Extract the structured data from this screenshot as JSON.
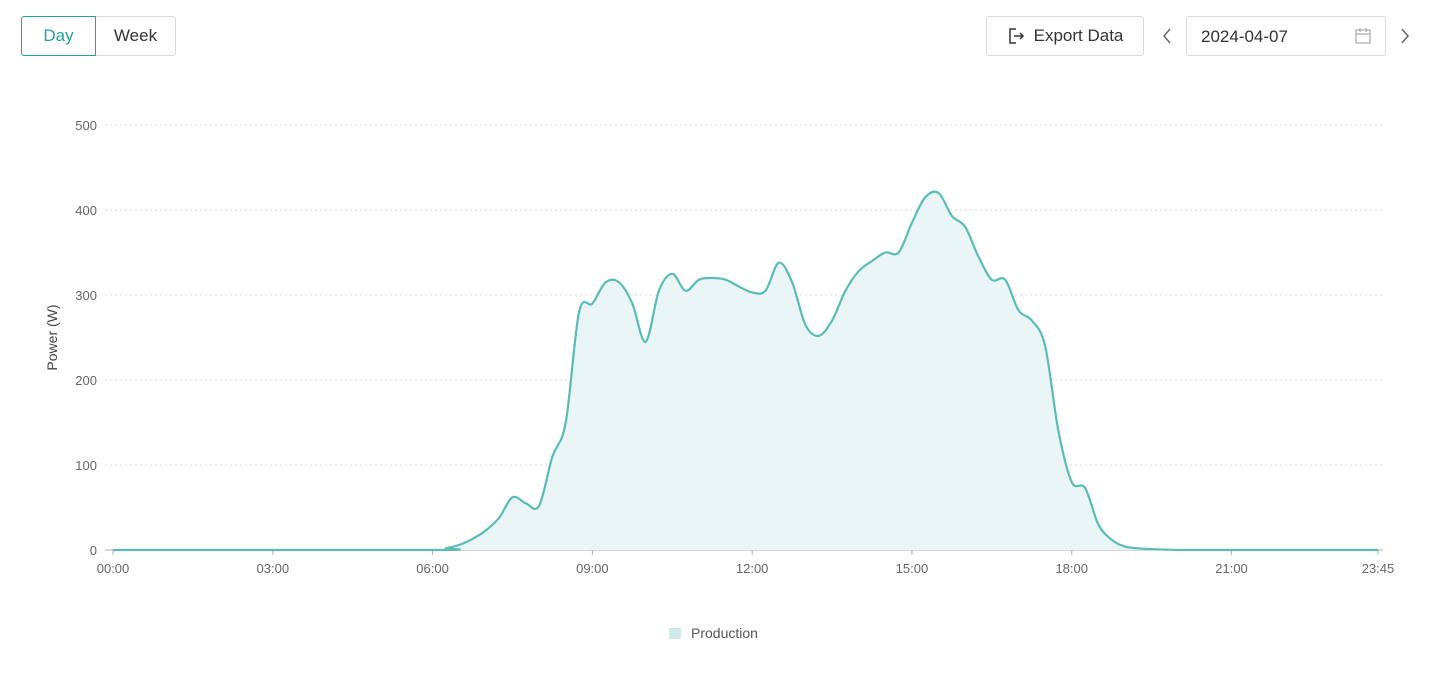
{
  "toolbar": {
    "tabs": [
      {
        "label": "Day",
        "active": true
      },
      {
        "label": "Week",
        "active": false
      }
    ],
    "export_label": "Export Data",
    "date_value": "2024-04-07",
    "icons": {
      "export": "export-icon",
      "prev": "chevron-left-icon",
      "next": "chevron-right-icon",
      "calendar": "calendar-icon"
    }
  },
  "colors": {
    "accent": "#24a39a",
    "line": "#5bbcb6",
    "fill": "#e9f6f5",
    "legend_swatch": "#cfeae8",
    "grid": "#d9d9d9",
    "axis": "#b0b0b0"
  },
  "chart_data": {
    "type": "area",
    "ylabel": "Power (W)",
    "xlabel": "",
    "ylim": [
      0,
      500
    ],
    "yticks": [
      0,
      100,
      200,
      300,
      400,
      500
    ],
    "x_range": [
      "00:00",
      "23:45"
    ],
    "xticks": [
      "00:00",
      "03:00",
      "06:00",
      "09:00",
      "12:00",
      "15:00",
      "18:00",
      "21:00",
      "23:45"
    ],
    "grid": "horizontal dotted",
    "legend_position": "bottom-center",
    "series": [
      {
        "name": "Production",
        "x": [
          "00:00",
          "06:00",
          "06:15",
          "06:30",
          "06:45",
          "07:00",
          "07:15",
          "07:30",
          "07:45",
          "08:00",
          "08:15",
          "08:30",
          "08:45",
          "09:00",
          "09:15",
          "09:30",
          "09:45",
          "10:00",
          "10:15",
          "10:30",
          "10:45",
          "11:00",
          "11:15",
          "11:30",
          "11:45",
          "12:00",
          "12:15",
          "12:30",
          "12:45",
          "13:00",
          "13:15",
          "13:30",
          "13:45",
          "14:00",
          "14:15",
          "14:30",
          "14:45",
          "15:00",
          "15:15",
          "15:30",
          "15:45",
          "16:00",
          "16:15",
          "16:30",
          "16:45",
          "17:00",
          "17:15",
          "17:30",
          "17:45",
          "18:00",
          "18:15",
          "18:30",
          "18:45",
          "19:00",
          "19:15",
          "19:30",
          "19:45",
          "20:00",
          "20:15",
          "21:00",
          "23:45"
        ],
        "values": [
          0,
          0,
          2,
          6,
          13,
          23,
          38,
          62,
          55,
          52,
          110,
          150,
          280,
          290,
          315,
          315,
          290,
          245,
          305,
          325,
          305,
          318,
          320,
          318,
          310,
          303,
          305,
          338,
          315,
          265,
          252,
          270,
          305,
          328,
          340,
          350,
          350,
          385,
          415,
          420,
          393,
          380,
          345,
          318,
          318,
          282,
          270,
          240,
          140,
          80,
          73,
          30,
          12,
          4,
          2,
          1,
          0.5,
          0,
          0,
          0,
          0
        ]
      }
    ]
  }
}
